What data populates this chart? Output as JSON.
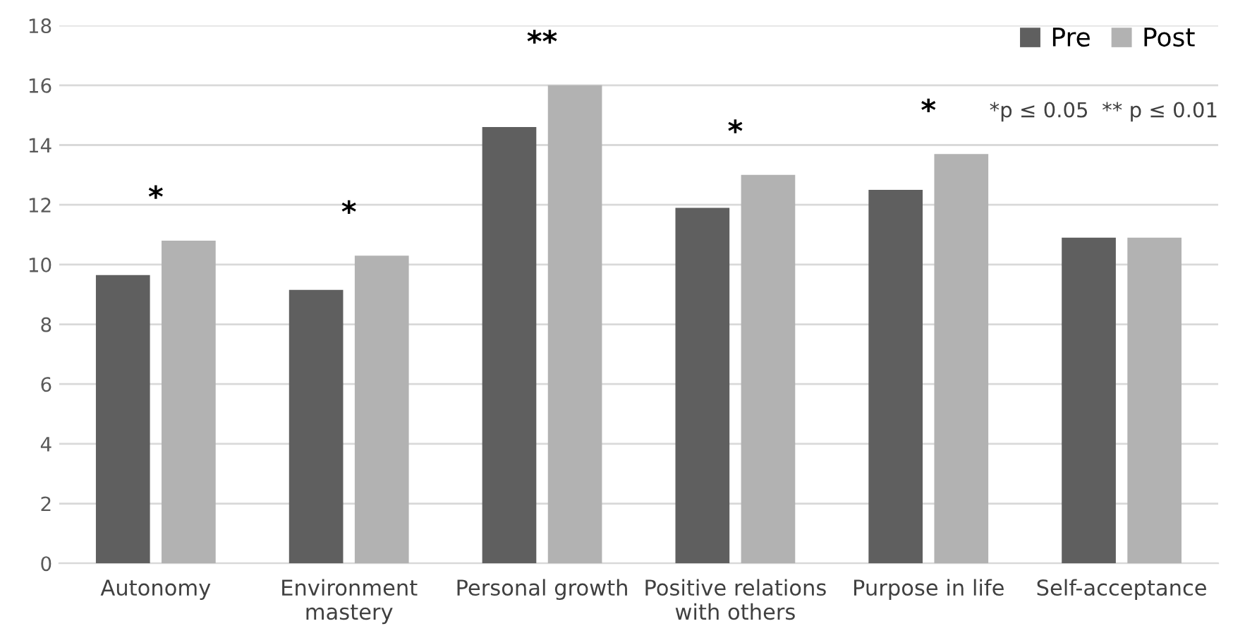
{
  "chart_data": {
    "type": "bar",
    "categories": [
      "Autonomy",
      "Environment\nmastery",
      "Personal growth",
      "Positive relations\nwith others",
      "Purpose in life",
      "Self-acceptance"
    ],
    "series": [
      {
        "name": "Pre",
        "color": "#5f5f5f",
        "values": [
          9.65,
          9.15,
          14.6,
          11.9,
          12.5,
          10.9
        ]
      },
      {
        "name": "Post",
        "color": "#b2b2b2",
        "values": [
          10.8,
          10.3,
          16.0,
          13.0,
          13.7,
          10.9
        ]
      }
    ],
    "ylim": [
      0,
      18
    ],
    "yticks": [
      0,
      2,
      4,
      6,
      8,
      10,
      12,
      14,
      16,
      18
    ],
    "grid": "y",
    "legend": "top right",
    "annotations": [
      "*",
      "*",
      "**",
      "*",
      "*",
      "*p ≤ 0.05  ** p ≤ 0.01"
    ]
  }
}
